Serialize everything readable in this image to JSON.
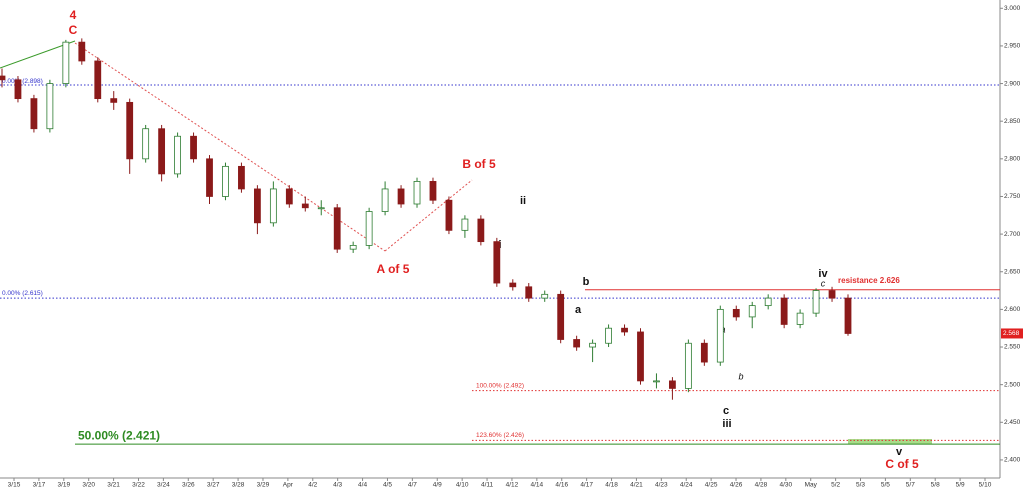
{
  "chart_data": {
    "type": "candlestick",
    "categories": [
      "3/15",
      "3/17",
      "3/19",
      "3/20",
      "3/21",
      "3/22",
      "3/24",
      "3/26",
      "3/27",
      "3/28",
      "3/29",
      "Apr",
      "4/2",
      "4/3",
      "4/4",
      "4/5",
      "4/7",
      "4/9",
      "4/10",
      "4/11",
      "4/12",
      "4/14",
      "4/16",
      "4/17",
      "4/18",
      "4/21",
      "4/23",
      "4/24",
      "4/25",
      "4/26",
      "4/28",
      "4/30",
      "May",
      "5/2",
      "5/3",
      "5/5",
      "5/7",
      "5/8",
      "5/9",
      "5/10"
    ],
    "ohlc": [
      [
        2.91,
        2.92,
        2.895,
        2.905
      ],
      [
        2.905,
        2.91,
        2.875,
        2.88
      ],
      [
        2.88,
        2.885,
        2.835,
        2.84
      ],
      [
        2.84,
        2.905,
        2.835,
        2.9
      ],
      [
        2.9,
        2.958,
        2.895,
        2.955
      ],
      [
        2.955,
        2.96,
        2.925,
        2.93
      ],
      [
        2.93,
        2.935,
        2.875,
        2.88
      ],
      [
        2.88,
        2.89,
        2.865,
        2.875
      ],
      [
        2.875,
        2.88,
        2.78,
        2.8
      ],
      [
        2.8,
        2.845,
        2.795,
        2.84
      ],
      [
        2.84,
        2.845,
        2.77,
        2.78
      ],
      [
        2.78,
        2.835,
        2.775,
        2.83
      ],
      [
        2.83,
        2.835,
        2.795,
        2.8
      ],
      [
        2.8,
        2.805,
        2.74,
        2.75
      ],
      [
        2.75,
        2.795,
        2.745,
        2.79
      ],
      [
        2.79,
        2.795,
        2.755,
        2.76
      ],
      [
        2.76,
        2.765,
        2.7,
        2.715
      ],
      [
        2.715,
        2.77,
        2.71,
        2.76
      ],
      [
        2.76,
        2.765,
        2.735,
        2.74
      ],
      [
        2.74,
        2.75,
        2.73,
        2.735
      ],
      [
        2.735,
        2.745,
        2.725,
        2.735
      ],
      [
        2.735,
        2.74,
        2.675,
        2.68
      ],
      [
        2.68,
        2.69,
        2.675,
        2.685
      ],
      [
        2.685,
        2.735,
        2.68,
        2.73
      ],
      [
        2.73,
        2.77,
        2.725,
        2.76
      ],
      [
        2.76,
        2.765,
        2.735,
        2.74
      ],
      [
        2.74,
        2.775,
        2.735,
        2.77
      ],
      [
        2.77,
        2.775,
        2.74,
        2.745
      ],
      [
        2.745,
        2.75,
        2.7,
        2.705
      ],
      [
        2.705,
        2.725,
        2.695,
        2.72
      ],
      [
        2.72,
        2.725,
        2.685,
        2.69
      ],
      [
        2.69,
        2.695,
        2.63,
        2.635
      ],
      [
        2.635,
        2.64,
        2.625,
        2.63
      ],
      [
        2.63,
        2.635,
        2.61,
        2.615
      ],
      [
        2.615,
        2.625,
        2.61,
        2.62
      ],
      [
        2.62,
        2.625,
        2.555,
        2.56
      ],
      [
        2.56,
        2.565,
        2.545,
        2.55
      ],
      [
        2.55,
        2.56,
        2.53,
        2.555
      ],
      [
        2.555,
        2.58,
        2.55,
        2.575
      ],
      [
        2.575,
        2.58,
        2.565,
        2.57
      ],
      [
        2.57,
        2.575,
        2.5,
        2.505
      ],
      [
        2.505,
        2.515,
        2.495,
        2.505
      ],
      [
        2.505,
        2.51,
        2.48,
        2.495
      ],
      [
        2.495,
        2.56,
        2.49,
        2.555
      ],
      [
        2.555,
        2.56,
        2.525,
        2.53
      ],
      [
        2.53,
        2.605,
        2.525,
        2.6
      ],
      [
        2.6,
        2.605,
        2.585,
        2.59
      ],
      [
        2.59,
        2.61,
        2.575,
        2.605
      ],
      [
        2.605,
        2.62,
        2.6,
        2.615
      ],
      [
        2.615,
        2.62,
        2.575,
        2.58
      ],
      [
        2.58,
        2.6,
        2.575,
        2.595
      ],
      [
        2.595,
        2.628,
        2.59,
        2.625
      ],
      [
        2.625,
        2.63,
        2.61,
        2.615
      ],
      [
        2.615,
        2.62,
        2.565,
        2.568
      ]
    ],
    "up_color": "#2e7d32",
    "down_color": "#8b1a1a",
    "last_price": {
      "value": 2.568,
      "label": "2.568"
    },
    "ylim": [
      2.376,
      3.011
    ],
    "yticks": [
      {
        "value": 2.4,
        "label": "2.400"
      },
      {
        "value": 2.45,
        "label": "2.450"
      },
      {
        "value": 2.5,
        "label": "2.500"
      },
      {
        "value": 2.55,
        "label": "2.550"
      },
      {
        "value": 2.6,
        "label": "2.600"
      },
      {
        "value": 2.65,
        "label": "2.650"
      },
      {
        "value": 2.7,
        "label": "2.700"
      },
      {
        "value": 2.75,
        "label": "2.750"
      },
      {
        "value": 2.8,
        "label": "2.800"
      },
      {
        "value": 2.85,
        "label": "2.850"
      },
      {
        "value": 2.9,
        "label": "2.900"
      },
      {
        "value": 2.95,
        "label": "2.950"
      },
      {
        "value": 3,
        "label": "3.000"
      }
    ],
    "levels": [
      {
        "value": 2.898,
        "label": "0.00% (2.898)",
        "color": "#3333cc"
      },
      {
        "value": 2.615,
        "label": "0.00% (2.615)",
        "color": "#3333cc"
      },
      {
        "value": 2.626,
        "label": "resistance 2.626",
        "color": "#e03030"
      },
      {
        "value": 2.492,
        "label": "100.00% (2.492)",
        "color": "#e03030"
      },
      {
        "value": 2.426,
        "label": "123.60% (2.426)",
        "color": "#e03030"
      },
      {
        "value": 2.421,
        "label": "50.00% (2.421)",
        "color": "#2e8b22"
      }
    ],
    "annotations": [
      "4",
      "C",
      "B of 5",
      "A of 5",
      "ii",
      "i",
      "b",
      "a",
      "c",
      "iii",
      "iv",
      "c",
      "a",
      "b",
      "v",
      "C of 5"
    ]
  }
}
